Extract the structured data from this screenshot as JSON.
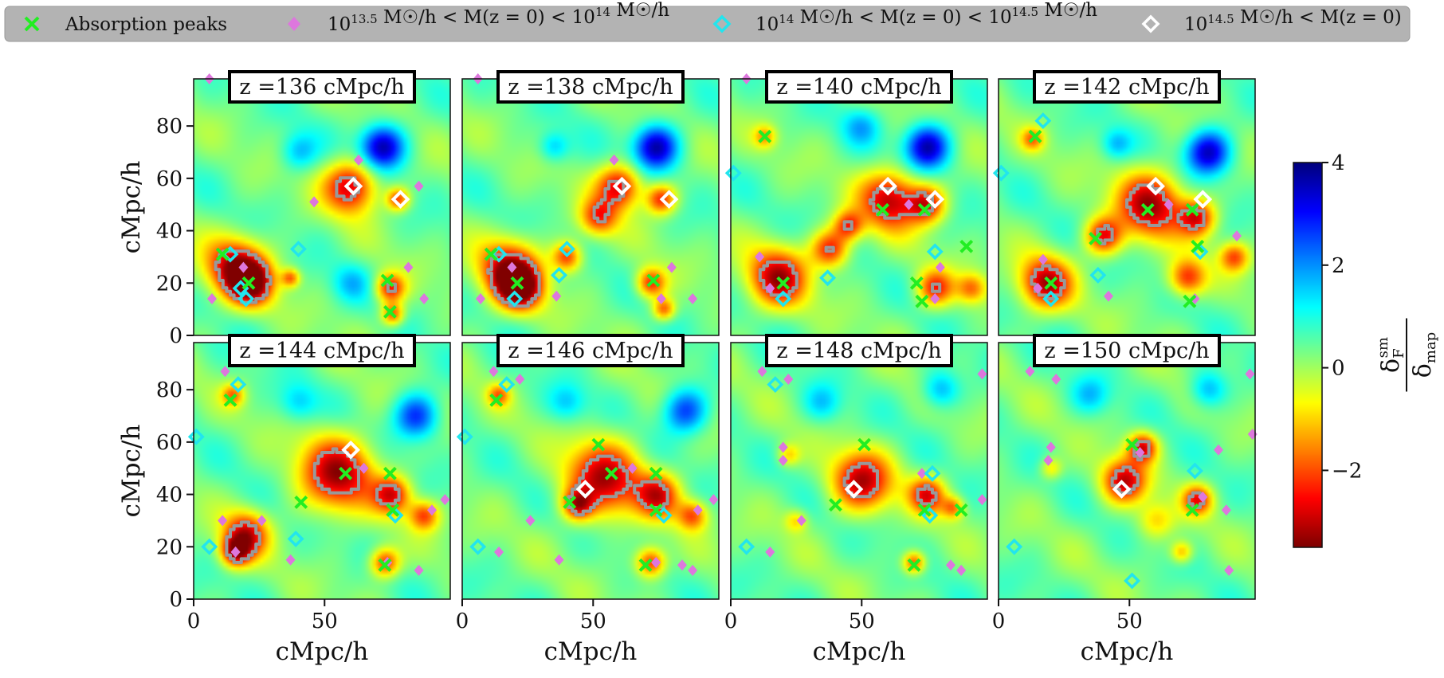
{
  "legend": {
    "placement": "top",
    "items": [
      {
        "marker": "x",
        "color": "#22ee22",
        "label": "Absorption peaks"
      },
      {
        "marker": "diamond",
        "color": "#dd77dd",
        "label": "10^{13.5} M☉/h < M(z = 0) < 10^{14} M☉/h"
      },
      {
        "marker": "diamond-open",
        "color": "#22e5ee",
        "label": "10^{14} M☉/h < M(z = 0) < 10^{14.5} M☉/h"
      },
      {
        "marker": "diamond-open",
        "color": "#ffffff",
        "label": "10^{14.5} M☉/h < M(z = 0)"
      }
    ]
  },
  "colorbar": {
    "label": "δ_F^sm / δ_map",
    "min": -3.5,
    "max": 4,
    "ticks": [
      4,
      2,
      0,
      -2
    ],
    "tick_labels": [
      "4",
      "2",
      "0",
      "−2"
    ],
    "colormap": "jet_r"
  },
  "chart_data": {
    "type": "heatmap",
    "grid": {
      "rows": 2,
      "cols": 4
    },
    "xlabel": "cMpc/h",
    "ylabel": "cMpc/h",
    "xlim": [
      0,
      98
    ],
    "ylim": [
      0,
      98
    ],
    "xticks": [
      0,
      50
    ],
    "yticks": [
      0,
      20,
      40,
      60,
      80
    ],
    "contour_color": "#999999",
    "panels": [
      {
        "title": "z =136 cMpc/h",
        "blobs": [
          [
            60,
            57,
            7,
            -3.3
          ],
          [
            16,
            26,
            8,
            -3.2
          ],
          [
            22,
            20,
            6,
            -3.3
          ],
          [
            75,
            18,
            4,
            -2.8
          ],
          [
            76,
            8,
            3,
            -2.5
          ],
          [
            37,
            22,
            2.5,
            -2.2
          ],
          [
            78,
            52,
            3,
            -2.5
          ],
          [
            72,
            72,
            6,
            3.4
          ],
          [
            40,
            70,
            5,
            1.3
          ],
          [
            60,
            20,
            5,
            1.0
          ]
        ],
        "peaks": [
          [
            11,
            31
          ],
          [
            21,
            20
          ],
          [
            74,
            21
          ],
          [
            75,
            9
          ]
        ],
        "m1": [
          [
            6,
            98
          ],
          [
            7,
            14
          ],
          [
            19,
            26
          ],
          [
            63,
            67
          ],
          [
            46,
            51
          ],
          [
            86,
            57
          ],
          [
            82,
            26
          ],
          [
            88,
            14
          ]
        ],
        "m2": [
          [
            14,
            31
          ],
          [
            20,
            14
          ],
          [
            40,
            33
          ],
          [
            18,
            18
          ]
        ],
        "m3": [
          [
            61,
            57
          ],
          [
            79,
            52
          ]
        ]
      },
      {
        "title": "z =138 cMpc/h",
        "blobs": [
          [
            60,
            57,
            6,
            -3.2
          ],
          [
            18,
            25,
            8,
            -3.3
          ],
          [
            22,
            18,
            6,
            -3.3
          ],
          [
            40,
            30,
            4,
            -2.6
          ],
          [
            52,
            45,
            5,
            -2.4
          ],
          [
            76,
            52,
            4,
            -2.7
          ],
          [
            72,
            20,
            4,
            -2.7
          ],
          [
            77,
            10,
            3,
            -2.4
          ],
          [
            74,
            72,
            6,
            3.4
          ],
          [
            35,
            72,
            4,
            1.3
          ]
        ],
        "peaks": [
          [
            11,
            31
          ],
          [
            21,
            20
          ],
          [
            73,
            21
          ]
        ],
        "m1": [
          [
            6,
            98
          ],
          [
            7,
            14
          ],
          [
            19,
            26
          ],
          [
            58,
            67
          ],
          [
            36,
            15
          ],
          [
            76,
            14
          ],
          [
            80,
            26
          ],
          [
            88,
            14
          ]
        ],
        "m2": [
          [
            14,
            31
          ],
          [
            20,
            14
          ],
          [
            40,
            33
          ],
          [
            37,
            23
          ]
        ],
        "m3": [
          [
            61,
            57
          ],
          [
            79,
            52
          ]
        ]
      },
      {
        "title": "z =140 cMpc/h",
        "blobs": [
          [
            61,
            52,
            8,
            -3.3
          ],
          [
            18,
            22,
            8,
            -3.3
          ],
          [
            38,
            33,
            5,
            -2.8
          ],
          [
            75,
            50,
            5,
            -2.8
          ],
          [
            78,
            18,
            5,
            -2.6
          ],
          [
            45,
            42,
            4,
            -2.5
          ],
          [
            92,
            18,
            4,
            -2.0
          ],
          [
            13,
            76,
            3,
            -1.6
          ],
          [
            75,
            72,
            6,
            3.4
          ],
          [
            50,
            80,
            5,
            1.2
          ]
        ],
        "peaks": [
          [
            13,
            76
          ],
          [
            20,
            20
          ],
          [
            58,
            48
          ],
          [
            74,
            48
          ],
          [
            90,
            34
          ],
          [
            71,
            20
          ],
          [
            73,
            13
          ]
        ],
        "m1": [
          [
            6,
            98
          ],
          [
            11,
            30
          ],
          [
            15,
            18
          ],
          [
            68,
            50
          ],
          [
            80,
            26
          ],
          [
            78,
            14
          ]
        ],
        "m2": [
          [
            1,
            62
          ],
          [
            20,
            14
          ],
          [
            37,
            22
          ],
          [
            78,
            32
          ]
        ],
        "m3": [
          [
            60,
            57
          ],
          [
            78,
            52
          ]
        ]
      },
      {
        "title": "z =142 cMpc/h",
        "blobs": [
          [
            58,
            50,
            9,
            -3.4
          ],
          [
            18,
            20,
            7,
            -3.3
          ],
          [
            40,
            38,
            5,
            -2.9
          ],
          [
            76,
            45,
            5,
            -2.9
          ],
          [
            72,
            22,
            5,
            -2.7
          ],
          [
            90,
            30,
            4,
            -2.3
          ],
          [
            13,
            75,
            3,
            -1.8
          ],
          [
            80,
            70,
            6,
            3.3
          ],
          [
            45,
            73,
            4,
            1.2
          ]
        ],
        "peaks": [
          [
            14,
            76
          ],
          [
            20,
            20
          ],
          [
            37,
            37
          ],
          [
            57,
            48
          ],
          [
            74,
            48
          ],
          [
            76,
            34
          ],
          [
            73,
            13
          ]
        ],
        "m1": [
          [
            15,
            18
          ],
          [
            17,
            29
          ],
          [
            65,
            50
          ],
          [
            91,
            38
          ],
          [
            75,
            14
          ],
          [
            42,
            15
          ]
        ],
        "m2": [
          [
            1,
            62
          ],
          [
            17,
            82
          ],
          [
            38,
            23
          ],
          [
            20,
            14
          ],
          [
            77,
            32
          ]
        ],
        "m3": [
          [
            60,
            57
          ],
          [
            78,
            52
          ]
        ]
      },
      {
        "title": "z =144 cMpc/h",
        "blobs": [
          [
            55,
            48,
            10,
            -3.4
          ],
          [
            20,
            25,
            6,
            -3.0
          ],
          [
            16,
            18,
            4,
            -3.1
          ],
          [
            76,
            40,
            5,
            -2.8
          ],
          [
            88,
            32,
            4,
            -2.4
          ],
          [
            73,
            14,
            4,
            -2.8
          ],
          [
            15,
            78,
            3,
            -1.9
          ],
          [
            85,
            70,
            6,
            2.5
          ],
          [
            40,
            75,
            5,
            1.1
          ]
        ],
        "peaks": [
          [
            14,
            76
          ],
          [
            41,
            37
          ],
          [
            58,
            48
          ],
          [
            75,
            48
          ],
          [
            76,
            34
          ],
          [
            73,
            13
          ]
        ],
        "m1": [
          [
            12,
            87
          ],
          [
            11,
            30
          ],
          [
            16,
            18
          ],
          [
            26,
            30
          ],
          [
            37,
            15
          ],
          [
            65,
            50
          ],
          [
            74,
            14
          ],
          [
            86,
            11
          ],
          [
            96,
            38
          ],
          [
            91,
            34
          ]
        ],
        "m2": [
          [
            1,
            62
          ],
          [
            17,
            82
          ],
          [
            6,
            20
          ],
          [
            39,
            23
          ],
          [
            77,
            32
          ]
        ],
        "m3": [
          [
            60,
            57
          ]
        ]
      },
      {
        "title": "z =146 cMpc/h",
        "blobs": [
          [
            54,
            46,
            10,
            -3.3
          ],
          [
            44,
            36,
            4,
            -2.6
          ],
          [
            75,
            40,
            6,
            -2.8
          ],
          [
            88,
            32,
            4,
            -2.3
          ],
          [
            72,
            14,
            4,
            -2.8
          ],
          [
            14,
            78,
            3,
            -1.9
          ],
          [
            85,
            72,
            6,
            2.4
          ],
          [
            40,
            75,
            5,
            1.1
          ]
        ],
        "peaks": [
          [
            13,
            76
          ],
          [
            41,
            37
          ],
          [
            52,
            59
          ],
          [
            57,
            48
          ],
          [
            74,
            48
          ],
          [
            74,
            34
          ],
          [
            70,
            13
          ]
        ],
        "m1": [
          [
            12,
            87
          ],
          [
            22,
            84
          ],
          [
            26,
            30
          ],
          [
            37,
            15
          ],
          [
            65,
            50
          ],
          [
            74,
            14
          ],
          [
            84,
            13
          ],
          [
            88,
            11
          ],
          [
            96,
            38
          ],
          [
            90,
            34
          ],
          [
            14,
            18
          ]
        ],
        "m2": [
          [
            1,
            62
          ],
          [
            17,
            82
          ],
          [
            6,
            20
          ],
          [
            77,
            32
          ]
        ],
        "m3": [
          [
            47,
            42
          ]
        ]
      },
      {
        "title": "z =148 cMpc/h",
        "blobs": [
          [
            50,
            45,
            8,
            -3.3
          ],
          [
            75,
            40,
            5,
            -2.8
          ],
          [
            70,
            14,
            3,
            -2.6
          ],
          [
            85,
            35,
            3,
            -2.0
          ],
          [
            22,
            55,
            3,
            -1.4
          ],
          [
            25,
            30,
            3,
            -1.3
          ],
          [
            80,
            80,
            5,
            1.6
          ],
          [
            35,
            75,
            5,
            1.1
          ]
        ],
        "peaks": [
          [
            51,
            59
          ],
          [
            40,
            36
          ],
          [
            74,
            34
          ],
          [
            70,
            13
          ],
          [
            88,
            34
          ]
        ],
        "m1": [
          [
            12,
            87
          ],
          [
            22,
            84
          ],
          [
            20,
            53
          ],
          [
            20,
            58
          ],
          [
            27,
            30
          ],
          [
            15,
            18
          ],
          [
            73,
            48
          ],
          [
            96,
            86
          ],
          [
            96,
            38
          ],
          [
            88,
            11
          ],
          [
            84,
            13
          ]
        ],
        "m2": [
          [
            17,
            82
          ],
          [
            6,
            20
          ],
          [
            77,
            48
          ],
          [
            76,
            32
          ]
        ],
        "m3": [
          [
            47,
            42
          ]
        ]
      },
      {
        "title": "z =150 cMpc/h",
        "blobs": [
          [
            48,
            45,
            6,
            -3.2
          ],
          [
            55,
            58,
            4,
            -3.0
          ],
          [
            76,
            38,
            4,
            -2.6
          ],
          [
            70,
            18,
            3,
            -1.8
          ],
          [
            20,
            50,
            3,
            -1.4
          ],
          [
            60,
            30,
            5,
            -1.4
          ],
          [
            80,
            80,
            5,
            1.6
          ],
          [
            35,
            78,
            5,
            1.1
          ]
        ],
        "peaks": [
          [
            51,
            59
          ],
          [
            74,
            34
          ]
        ],
        "m1": [
          [
            12,
            87
          ],
          [
            22,
            84
          ],
          [
            19,
            53
          ],
          [
            20,
            58
          ],
          [
            54,
            56
          ],
          [
            78,
            39
          ],
          [
            84,
            57
          ],
          [
            88,
            11
          ],
          [
            96,
            86
          ],
          [
            97,
            63
          ],
          [
            87,
            34
          ]
        ],
        "m2": [
          [
            6,
            20
          ],
          [
            51,
            7
          ],
          [
            75,
            49
          ]
        ],
        "m3": [
          [
            47,
            42
          ]
        ]
      }
    ]
  }
}
